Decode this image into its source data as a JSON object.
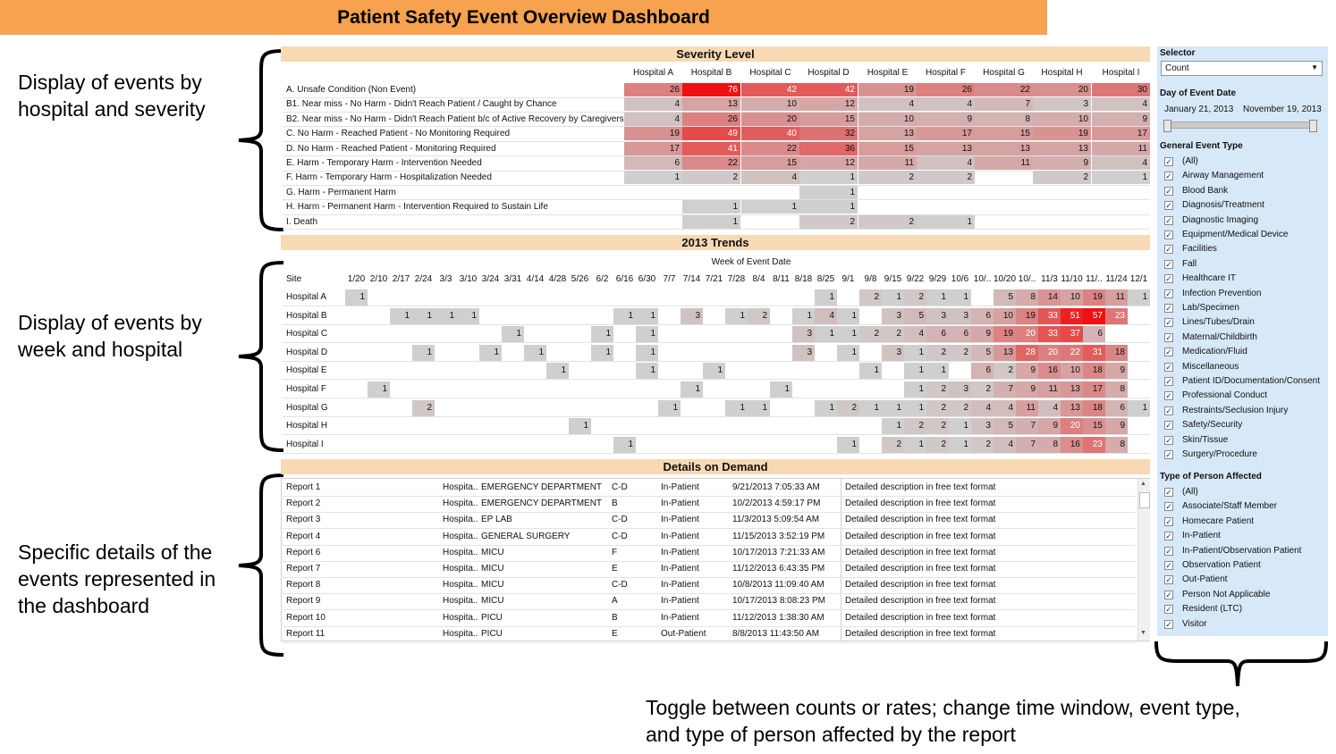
{
  "dashboard": {
    "title": "Patient Safety Event Overview Dashboard"
  },
  "annotations": {
    "a1": [
      "Display of events by",
      "hospital and severity"
    ],
    "a2": [
      "Display of events by",
      "week and hospital"
    ],
    "a3": [
      "Specific details of the",
      "events represented in",
      "the dashboard"
    ],
    "a4": [
      "Toggle between counts or rates; change time window, event type,",
      "and type of person affected by the report"
    ]
  },
  "severity": {
    "title": "Severity Level",
    "hospitals": [
      "Hospital A",
      "Hospital B",
      "Hospital C",
      "Hospital D",
      "Hospital E",
      "Hospital F",
      "Hospital G",
      "Hospital H",
      "Hospital I"
    ],
    "rows": [
      {
        "label": "A. Unsafe Condition (Non Event)",
        "values": [
          26,
          76,
          42,
          42,
          19,
          26,
          22,
          20,
          30
        ]
      },
      {
        "label": "B1. Near miss - No Harm - Didn't Reach Patient / Caught by Chance",
        "values": [
          4,
          13,
          10,
          12,
          4,
          4,
          7,
          3,
          4
        ]
      },
      {
        "label": "B2. Near miss - No Harm - Didn't Reach Patient b/c of Active Recovery by Caregivers",
        "values": [
          4,
          26,
          20,
          15,
          10,
          9,
          8,
          10,
          9
        ]
      },
      {
        "label": "C. No Harm - Reached Patient - No Monitoring Required",
        "values": [
          19,
          49,
          40,
          32,
          13,
          17,
          15,
          19,
          17
        ]
      },
      {
        "label": "D. No Harm - Reached Patient - Monitoring Required",
        "values": [
          17,
          41,
          22,
          36,
          15,
          13,
          13,
          13,
          11
        ]
      },
      {
        "label": "E. Harm - Temporary Harm - Intervention Needed",
        "values": [
          6,
          22,
          15,
          12,
          11,
          4,
          11,
          9,
          4
        ]
      },
      {
        "label": "F. Harm - Temporary Harm - Hospitalization Needed",
        "values": [
          1,
          2,
          4,
          1,
          2,
          2,
          null,
          2,
          1
        ]
      },
      {
        "label": "G. Harm - Permanent Harm",
        "values": [
          null,
          null,
          null,
          1,
          null,
          null,
          null,
          null,
          null
        ]
      },
      {
        "label": "H. Harm - Permanent Harm - Intervention Required to Sustain Life",
        "values": [
          null,
          1,
          1,
          1,
          null,
          null,
          null,
          null,
          null
        ]
      },
      {
        "label": "I. Death",
        "values": [
          null,
          1,
          null,
          2,
          2,
          1,
          null,
          null,
          null
        ]
      }
    ]
  },
  "trends": {
    "title": "2013 Trends",
    "axis_title": "Week of Event Date",
    "site_header": "Site",
    "weeks": [
      "1/20",
      "2/10",
      "2/17",
      "2/24",
      "3/3",
      "3/10",
      "3/24",
      "3/31",
      "4/14",
      "4/28",
      "5/26",
      "6/2",
      "6/16",
      "6/30",
      "7/7",
      "7/14",
      "7/21",
      "7/28",
      "8/4",
      "8/11",
      "8/18",
      "8/25",
      "9/1",
      "9/8",
      "9/15",
      "9/22",
      "9/29",
      "10/6",
      "10/..",
      "10/20",
      "10/..",
      "11/3",
      "11/10",
      "11/..",
      "11/24",
      "12/1"
    ],
    "rows": [
      {
        "site": "Hospital A",
        "values": [
          1,
          null,
          null,
          null,
          null,
          null,
          null,
          null,
          null,
          null,
          null,
          null,
          null,
          null,
          null,
          null,
          null,
          null,
          null,
          null,
          null,
          1,
          null,
          2,
          1,
          2,
          1,
          1,
          null,
          5,
          8,
          14,
          10,
          19,
          11,
          1
        ]
      },
      {
        "site": "Hospital B",
        "values": [
          null,
          null,
          1,
          1,
          1,
          1,
          null,
          null,
          null,
          null,
          null,
          null,
          1,
          1,
          null,
          3,
          null,
          1,
          2,
          null,
          1,
          4,
          1,
          null,
          3,
          5,
          3,
          3,
          6,
          10,
          19,
          33,
          51,
          57,
          23,
          null
        ]
      },
      {
        "site": "Hospital C",
        "values": [
          null,
          null,
          null,
          null,
          null,
          null,
          null,
          1,
          null,
          null,
          null,
          1,
          null,
          1,
          null,
          null,
          null,
          null,
          null,
          null,
          3,
          1,
          1,
          2,
          2,
          4,
          6,
          6,
          9,
          19,
          20,
          33,
          37,
          6,
          null,
          null
        ]
      },
      {
        "site": "Hospital D",
        "values": [
          null,
          null,
          null,
          1,
          null,
          null,
          1,
          null,
          1,
          null,
          null,
          1,
          null,
          1,
          null,
          null,
          null,
          null,
          null,
          null,
          3,
          null,
          1,
          null,
          3,
          1,
          2,
          2,
          5,
          13,
          28,
          20,
          22,
          31,
          18,
          null
        ]
      },
      {
        "site": "Hospital E",
        "values": [
          null,
          null,
          null,
          null,
          null,
          null,
          null,
          null,
          null,
          1,
          null,
          null,
          null,
          1,
          null,
          null,
          1,
          null,
          null,
          null,
          null,
          null,
          null,
          1,
          null,
          1,
          1,
          null,
          6,
          2,
          9,
          16,
          10,
          18,
          9,
          null
        ]
      },
      {
        "site": "Hospital F",
        "values": [
          null,
          1,
          null,
          null,
          null,
          null,
          null,
          null,
          null,
          null,
          null,
          null,
          null,
          null,
          null,
          1,
          null,
          null,
          null,
          1,
          null,
          null,
          null,
          null,
          null,
          1,
          2,
          3,
          2,
          7,
          9,
          11,
          13,
          17,
          8,
          null
        ]
      },
      {
        "site": "Hospital G",
        "values": [
          null,
          null,
          null,
          2,
          null,
          null,
          null,
          null,
          null,
          null,
          null,
          null,
          null,
          null,
          1,
          null,
          null,
          1,
          1,
          null,
          null,
          1,
          2,
          1,
          1,
          1,
          2,
          2,
          4,
          4,
          11,
          4,
          13,
          18,
          6,
          1
        ]
      },
      {
        "site": "Hospital H",
        "values": [
          null,
          null,
          null,
          null,
          null,
          null,
          null,
          null,
          null,
          null,
          1,
          null,
          null,
          null,
          null,
          null,
          null,
          null,
          null,
          null,
          null,
          null,
          null,
          null,
          1,
          2,
          2,
          1,
          3,
          5,
          7,
          9,
          20,
          15,
          9,
          null
        ]
      },
      {
        "site": "Hospital I",
        "values": [
          null,
          null,
          null,
          null,
          null,
          null,
          null,
          null,
          null,
          null,
          null,
          null,
          1,
          null,
          null,
          null,
          null,
          null,
          null,
          null,
          null,
          null,
          1,
          null,
          2,
          1,
          2,
          1,
          2,
          4,
          7,
          8,
          16,
          23,
          8,
          null
        ]
      }
    ]
  },
  "details": {
    "title": "Details on Demand",
    "rows": [
      {
        "report": "Report 1",
        "hospital": "Hospita..",
        "dept": "EMERGENCY DEPARTMENT",
        "severity": "C-D",
        "type": "In-Patient",
        "datetime": "9/21/2013 7:05:33 AM",
        "desc": "Detailed description in free text format"
      },
      {
        "report": "Report 2",
        "hospital": "Hospita..",
        "dept": "EMERGENCY DEPARTMENT",
        "severity": "B",
        "type": "In-Patient",
        "datetime": "10/2/2013 4:59:17 PM",
        "desc": "Detailed description in free text format"
      },
      {
        "report": "Report 3",
        "hospital": "Hospita..",
        "dept": "EP LAB",
        "severity": "C-D",
        "type": "In-Patient",
        "datetime": "11/3/2013 5:09:54 AM",
        "desc": "Detailed description in free text format"
      },
      {
        "report": "Report 4",
        "hospital": "Hospita..",
        "dept": "GENERAL SURGERY",
        "severity": "C-D",
        "type": "In-Patient",
        "datetime": "11/15/2013 3:52:19 PM",
        "desc": "Detailed description in free text format"
      },
      {
        "report": "Report 6",
        "hospital": "Hospita..",
        "dept": "MICU",
        "severity": "F",
        "type": "In-Patient",
        "datetime": "10/17/2013 7:21:33 AM",
        "desc": "Detailed description in free text format"
      },
      {
        "report": "Report 7",
        "hospital": "Hospita..",
        "dept": "MICU",
        "severity": "E",
        "type": "In-Patient",
        "datetime": "11/12/2013 6:43:35 PM",
        "desc": "Detailed description in free text format"
      },
      {
        "report": "Report 8",
        "hospital": "Hospita..",
        "dept": "MICU",
        "severity": "C-D",
        "type": "In-Patient",
        "datetime": "10/8/2013 11:09:40 AM",
        "desc": "Detailed description in free text format"
      },
      {
        "report": "Report 9",
        "hospital": "Hospita..",
        "dept": "MICU",
        "severity": "A",
        "type": "In-Patient",
        "datetime": "10/17/2013 8:08:23 PM",
        "desc": "Detailed description in free text format"
      },
      {
        "report": "Report 10",
        "hospital": "Hospita..",
        "dept": "PICU",
        "severity": "B",
        "type": "In-Patient",
        "datetime": "11/12/2013 1:38:30 AM",
        "desc": "Detailed description in free text format"
      },
      {
        "report": "Report 11",
        "hospital": "Hospita..",
        "dept": "PICU",
        "severity": "E",
        "type": "Out-Patient",
        "datetime": "8/8/2013 11:43:50 AM",
        "desc": "Detailed description in free text format"
      }
    ]
  },
  "sidebar": {
    "selector_title": "Selector",
    "selector_value": "Count",
    "date_title": "Day of Event Date",
    "date_start": "January 21, 2013",
    "date_end": "November 19, 2013",
    "event_type_title": "General Event Type",
    "event_types": [
      "(All)",
      "Airway Management",
      "Blood Bank",
      "Diagnosis/Treatment",
      "Diagnostic Imaging",
      "Equipment/Medical Device",
      "Facilities",
      "Fall",
      "Healthcare IT",
      "Infection Prevention",
      "Lab/Specimen",
      "Lines/Tubes/Drain",
      "Maternal/Childbirth",
      "Medication/Fluid",
      "Miscellaneous",
      "Patient ID/Documentation/Consent",
      "Professional Conduct",
      "Restraints/Seclusion Injury",
      "Safety/Security",
      "Skin/Tissue",
      "Surgery/Procedure"
    ],
    "person_title": "Type of Person Affected",
    "person_types": [
      "(All)",
      "Associate/Staff Member",
      "Homecare Patient",
      "In-Patient",
      "In-Patient/Observation Patient",
      "Observation Patient",
      "Out-Patient",
      "Person Not Applicable",
      "Resident (LTC)",
      "Visitor"
    ],
    "check_glyph": "✓"
  },
  "colors": {
    "header": "#f6a24f",
    "section": "#f7d9b4",
    "sidebar": "#d7e8f8",
    "low": "#cfcfcf",
    "high": "#ee1111"
  }
}
